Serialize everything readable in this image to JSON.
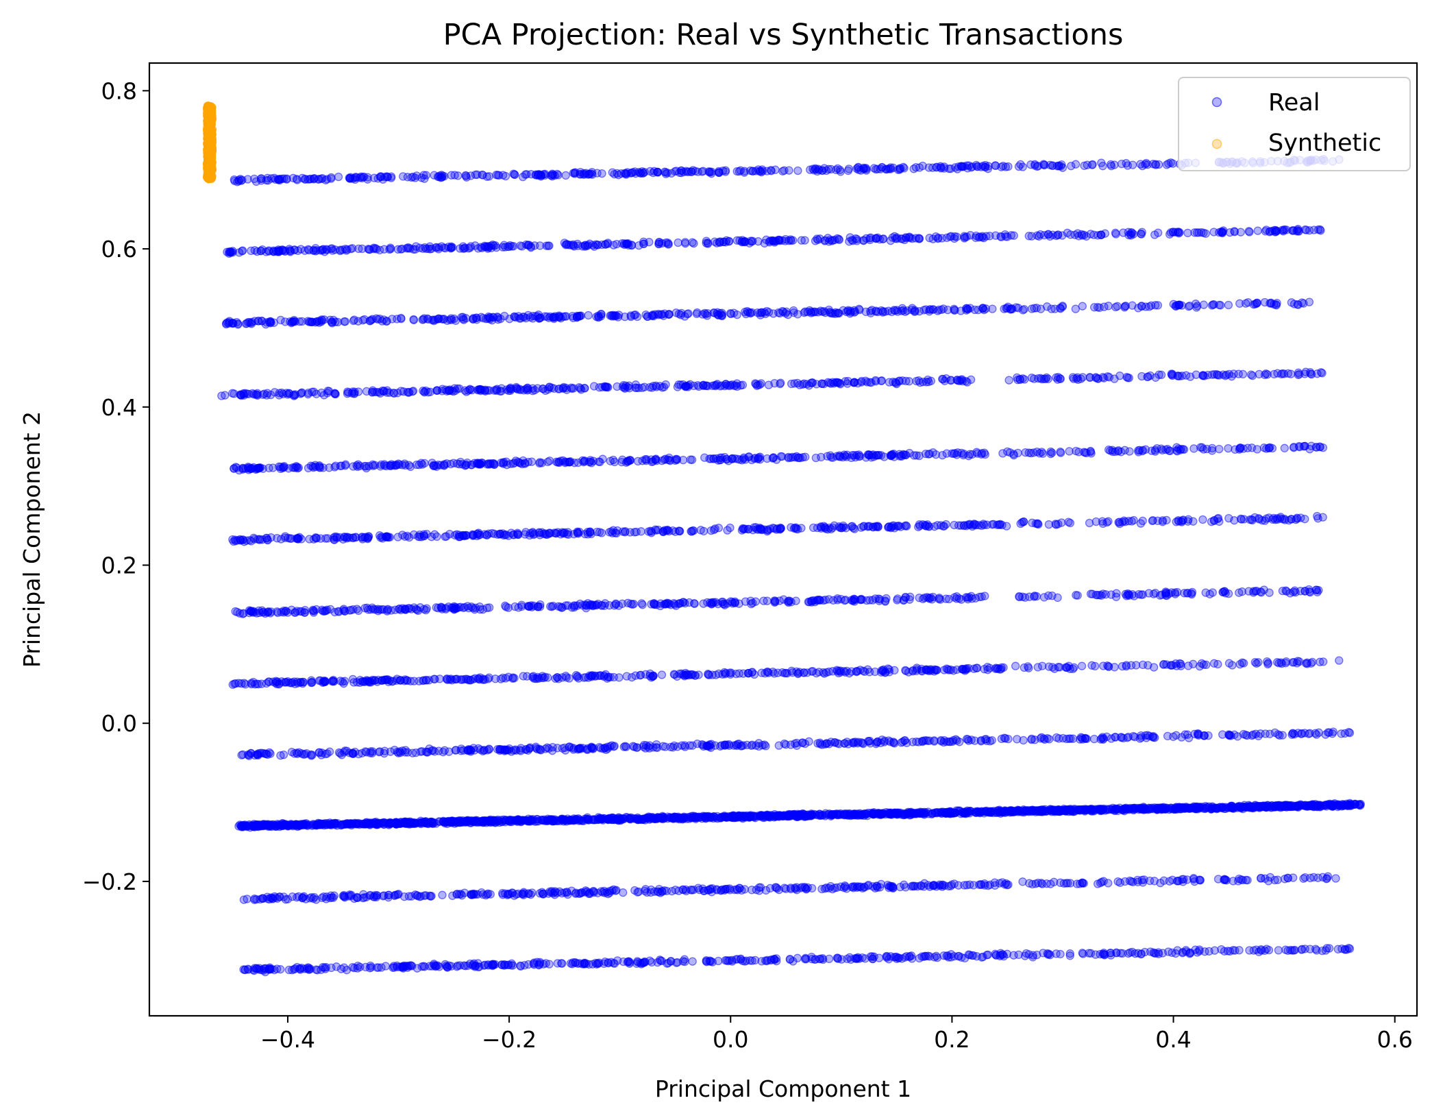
{
  "chart_data": {
    "type": "scatter",
    "title": "PCA Projection: Real vs Synthetic Transactions",
    "xlabel": "Principal Component 1",
    "ylabel": "Principal Component 2",
    "xlim": [
      -0.525,
      0.62
    ],
    "ylim": [
      -0.37,
      0.835
    ],
    "x_ticks": [
      -0.4,
      -0.2,
      0.0,
      0.2,
      0.4,
      0.6
    ],
    "x_tick_labels": [
      "−0.4",
      "−0.2",
      "0.0",
      "0.2",
      "0.4",
      "0.6"
    ],
    "y_ticks": [
      -0.2,
      0.0,
      0.2,
      0.4,
      0.6,
      0.8
    ],
    "y_tick_labels": [
      "−0.2",
      "0.0",
      "0.2",
      "0.4",
      "0.6",
      "0.8"
    ],
    "grid": false,
    "legend_position": "top-right",
    "series": [
      {
        "name": "Real",
        "color": "#0000ff",
        "alpha": 0.3,
        "bands": [
          {
            "x_range": [
              -0.45,
              0.555
            ],
            "y_start": 0.687,
            "y_end": 0.712,
            "gaps": [
              [
                0.42,
                0.44
              ]
            ]
          },
          {
            "x_range": [
              -0.455,
              0.535
            ],
            "y_start": 0.596,
            "y_end": 0.624
          },
          {
            "x_range": [
              -0.46,
              0.535
            ],
            "y_start": 0.506,
            "y_end": 0.532
          },
          {
            "x_range": [
              -0.46,
              0.535
            ],
            "y_start": 0.415,
            "y_end": 0.443,
            "gaps": [
              [
                0.22,
                0.25
              ]
            ]
          },
          {
            "x_range": [
              -0.45,
              0.54
            ],
            "y_start": 0.322,
            "y_end": 0.35
          },
          {
            "x_range": [
              -0.45,
              0.54
            ],
            "y_start": 0.232,
            "y_end": 0.26
          },
          {
            "x_range": [
              -0.45,
              0.54
            ],
            "y_start": 0.14,
            "y_end": 0.168,
            "gaps": [
              [
                0.23,
                0.26
              ]
            ]
          },
          {
            "x_range": [
              -0.45,
              0.55
            ],
            "y_start": 0.05,
            "y_end": 0.078
          },
          {
            "x_range": [
              -0.445,
              0.56
            ],
            "y_start": -0.04,
            "y_end": -0.012
          },
          {
            "x_range": [
              -0.445,
              0.57
            ],
            "y_start": -0.13,
            "y_end": -0.103,
            "dense": true
          },
          {
            "x_range": [
              -0.44,
              0.555
            ],
            "y_start": -0.222,
            "y_end": -0.195
          },
          {
            "x_range": [
              -0.44,
              0.56
            ],
            "y_start": -0.312,
            "y_end": -0.285
          }
        ]
      },
      {
        "name": "Synthetic",
        "color": "#ffa500",
        "alpha": 0.3,
        "x_range": [
          -0.473,
          -0.468
        ],
        "y_range": [
          0.688,
          0.781
        ]
      }
    ]
  }
}
